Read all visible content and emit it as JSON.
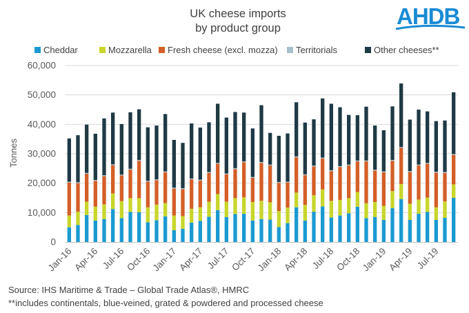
{
  "title_lines": [
    "UK cheese imports",
    "by product group"
  ],
  "logo_text": "AHDB",
  "colors": {
    "cheddar": "#1b9ad2",
    "mozzarella": "#c8d62c",
    "fresh": "#d45f28",
    "territorials": "#a9bfcc",
    "other": "#1f3a45",
    "brand": "#1a8bd4"
  },
  "source_lines": [
    "Source: IHS Maritime & Trade – Global Trade Atlas®, HMRC",
    "**includes continentals, blue-veined, grated & powdered and processed cheese"
  ],
  "chart_data": {
    "type": "bar",
    "stacked": true,
    "title": "UK cheese imports by product group",
    "xlabel": "",
    "ylabel": "Tonnes",
    "ylim": [
      0,
      60000
    ],
    "yticks": [
      0,
      10000,
      20000,
      30000,
      40000,
      50000,
      60000
    ],
    "ytick_labels": [
      "0",
      "10,000",
      "20,000",
      "30,000",
      "40,000",
      "50,000",
      "60,000"
    ],
    "grid": true,
    "legend_position": "top",
    "categories": [
      "Jan-16",
      "Feb-16",
      "Mar-16",
      "Apr-16",
      "May-16",
      "Jun-16",
      "Jul-16",
      "Aug-16",
      "Sep-16",
      "Oct-16",
      "Nov-16",
      "Dec-16",
      "Jan-17",
      "Feb-17",
      "Mar-17",
      "Apr-17",
      "May-17",
      "Jun-17",
      "Jul-17",
      "Aug-17",
      "Sep-17",
      "Oct-17",
      "Nov-17",
      "Dec-17",
      "Jan-18",
      "Feb-18",
      "Mar-18",
      "Apr-18",
      "May-18",
      "Jun-18",
      "Jul-18",
      "Aug-18",
      "Sep-18",
      "Oct-18",
      "Nov-18",
      "Dec-18",
      "Jan-19",
      "Feb-19",
      "Mar-19",
      "Apr-19",
      "May-19",
      "Jun-19",
      "Jul-19",
      "Aug-19",
      "Sep-19"
    ],
    "x_tick_labels": [
      "Jan-16",
      "Apr-16",
      "Jul-16",
      "Oct-16",
      "Jan-17",
      "Apr-17",
      "Jul-17",
      "Oct-17",
      "Jan-18",
      "Apr-18",
      "Jul-18",
      "Oct-18",
      "Jan-19",
      "Apr-19",
      "Jul-19"
    ],
    "series": [
      {
        "name": "Cheddar",
        "color_key": "cheddar",
        "values": [
          5000,
          5800,
          9200,
          7300,
          7800,
          11200,
          8100,
          10200,
          10100,
          6700,
          7400,
          8700,
          4000,
          4500,
          6600,
          7200,
          8600,
          10800,
          8500,
          9500,
          9600,
          7300,
          7800,
          7600,
          5100,
          6400,
          11800,
          7300,
          10300,
          12100,
          8300,
          9000,
          9800,
          12000,
          8100,
          8500,
          7500,
          11500,
          14600,
          7500,
          9600,
          10200,
          7500,
          8200,
          15000
        ]
      },
      {
        "name": "Mozzarella",
        "color_key": "mozzarella",
        "values": [
          4000,
          4500,
          4500,
          4700,
          5000,
          5300,
          5800,
          4700,
          4800,
          5100,
          5300,
          4500,
          5000,
          4300,
          4700,
          4600,
          5100,
          5500,
          5200,
          5400,
          5600,
          6300,
          6200,
          5900,
          5400,
          5300,
          5000,
          5300,
          5600,
          5800,
          5700,
          5300,
          5100,
          5000,
          5100,
          5100,
          4800,
          5800,
          5100,
          5500,
          4800,
          4900,
          4300,
          5600,
          4600
        ]
      },
      {
        "name": "Fresh cheese (excl. mozza)",
        "color_key": "fresh",
        "values": [
          11200,
          9700,
          9500,
          8800,
          9600,
          9600,
          8700,
          9700,
          12700,
          8700,
          8300,
          10500,
          9200,
          9200,
          10000,
          9100,
          9800,
          10300,
          9300,
          9900,
          11900,
          8200,
          12900,
          12500,
          9600,
          8500,
          12000,
          10100,
          9800,
          10500,
          10100,
          11200,
          11100,
          10400,
          14200,
          10700,
          11400,
          10300,
          12300,
          10800,
          11600,
          11500,
          11800,
          9700,
          10000
        ]
      },
      {
        "name": "Territorials",
        "color_key": "territorials",
        "values": [
          300,
          300,
          300,
          300,
          300,
          300,
          300,
          300,
          300,
          300,
          300,
          300,
          300,
          300,
          300,
          300,
          300,
          300,
          300,
          300,
          300,
          300,
          300,
          300,
          300,
          300,
          300,
          300,
          300,
          300,
          300,
          300,
          300,
          300,
          300,
          300,
          300,
          300,
          300,
          300,
          300,
          300,
          300,
          300,
          300
        ]
      },
      {
        "name": "Other cheeses**",
        "color_key": "other",
        "values": [
          14700,
          16000,
          16400,
          15700,
          19300,
          17600,
          17200,
          19200,
          17200,
          18200,
          18300,
          19500,
          16200,
          15400,
          18700,
          17700,
          16900,
          20100,
          19000,
          19100,
          16600,
          16500,
          19300,
          10800,
          15700,
          16400,
          18400,
          17600,
          15700,
          20100,
          22600,
          20000,
          16900,
          15400,
          18300,
          15000,
          14000,
          18200,
          21600,
          17500,
          18700,
          17500,
          17200,
          17500,
          21000
        ]
      }
    ]
  }
}
